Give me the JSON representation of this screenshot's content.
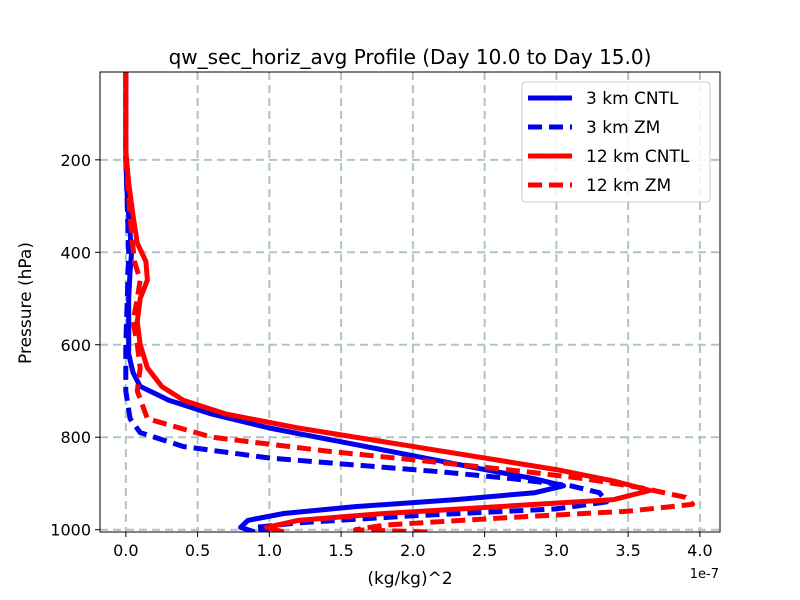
{
  "chart_data": {
    "type": "line",
    "title": "qw_sec_horiz_avg Profile (Day 10.0 to Day 15.0)",
    "xlabel": "(kg/kg)^2",
    "ylabel": "Pressure (hPa)",
    "x_offset_label": "1e-7",
    "x_scale": 1e-07,
    "xlim": [
      -0.18,
      4.14
    ],
    "ylim": [
      1005,
      10
    ],
    "y_inverted": true,
    "xticks": [
      0.0,
      0.5,
      1.0,
      1.5,
      2.0,
      2.5,
      3.0,
      3.5,
      4.0
    ],
    "xtick_labels": [
      "0.0",
      "0.5",
      "1.0",
      "1.5",
      "2.0",
      "2.5",
      "3.0",
      "3.5",
      "4.0"
    ],
    "yticks": [
      200,
      400,
      600,
      800,
      1000
    ],
    "ytick_labels": [
      "200",
      "400",
      "600",
      "800",
      "1000"
    ],
    "grid": true,
    "legend_position": "top-right",
    "series": [
      {
        "name": "3 km CNTL",
        "color": "#0000ee",
        "dash": "solid",
        "points": [
          [
            0.0,
            10
          ],
          [
            0.0,
            100
          ],
          [
            0.0,
            200
          ],
          [
            0.01,
            280
          ],
          [
            0.03,
            360
          ],
          [
            0.04,
            400
          ],
          [
            0.03,
            440
          ],
          [
            0.02,
            500
          ],
          [
            0.02,
            560
          ],
          [
            0.02,
            620
          ],
          [
            0.05,
            660
          ],
          [
            0.1,
            690
          ],
          [
            0.3,
            720
          ],
          [
            0.6,
            750
          ],
          [
            1.0,
            780
          ],
          [
            1.5,
            810
          ],
          [
            2.0,
            840
          ],
          [
            2.5,
            870
          ],
          [
            2.85,
            890
          ],
          [
            3.05,
            905
          ],
          [
            2.85,
            920
          ],
          [
            2.3,
            935
          ],
          [
            1.6,
            950
          ],
          [
            1.1,
            965
          ],
          [
            0.85,
            980
          ],
          [
            0.8,
            995
          ],
          [
            0.9,
            1005
          ]
        ]
      },
      {
        "name": "3 km ZM",
        "color": "#0000ee",
        "dash": "dashed",
        "points": [
          [
            0.0,
            10
          ],
          [
            0.0,
            100
          ],
          [
            0.0,
            200
          ],
          [
            0.01,
            300
          ],
          [
            0.02,
            400
          ],
          [
            0.01,
            500
          ],
          [
            0.0,
            600
          ],
          [
            0.0,
            700
          ],
          [
            0.03,
            760
          ],
          [
            0.1,
            790
          ],
          [
            0.4,
            820
          ],
          [
            1.0,
            845
          ],
          [
            1.6,
            860
          ],
          [
            2.2,
            875
          ],
          [
            2.7,
            890
          ],
          [
            3.1,
            905
          ],
          [
            3.3,
            920
          ],
          [
            3.35,
            940
          ],
          [
            3.0,
            955
          ],
          [
            2.0,
            970
          ],
          [
            1.2,
            985
          ],
          [
            0.9,
            995
          ],
          [
            1.0,
            1005
          ]
        ]
      },
      {
        "name": "12 km CNTL",
        "color": "#ff0000",
        "dash": "solid",
        "points": [
          [
            0.0,
            10
          ],
          [
            0.0,
            100
          ],
          [
            0.0,
            180
          ],
          [
            0.02,
            250
          ],
          [
            0.05,
            320
          ],
          [
            0.08,
            380
          ],
          [
            0.14,
            420
          ],
          [
            0.15,
            460
          ],
          [
            0.1,
            500
          ],
          [
            0.08,
            550
          ],
          [
            0.1,
            600
          ],
          [
            0.15,
            650
          ],
          [
            0.25,
            690
          ],
          [
            0.4,
            720
          ],
          [
            0.7,
            750
          ],
          [
            1.2,
            780
          ],
          [
            1.8,
            810
          ],
          [
            2.4,
            840
          ],
          [
            3.0,
            870
          ],
          [
            3.4,
            895
          ],
          [
            3.65,
            915
          ],
          [
            3.4,
            935
          ],
          [
            2.6,
            950
          ],
          [
            1.8,
            965
          ],
          [
            1.2,
            980
          ],
          [
            0.98,
            995
          ],
          [
            1.1,
            1005
          ]
        ]
      },
      {
        "name": "12 km ZM",
        "color": "#ff0000",
        "dash": "dashed",
        "points": [
          [
            0.0,
            10
          ],
          [
            0.0,
            100
          ],
          [
            0.0,
            200
          ],
          [
            0.02,
            280
          ],
          [
            0.04,
            360
          ],
          [
            0.06,
            420
          ],
          [
            0.1,
            460
          ],
          [
            0.08,
            500
          ],
          [
            0.05,
            550
          ],
          [
            0.08,
            600
          ],
          [
            0.1,
            650
          ],
          [
            0.08,
            700
          ],
          [
            0.15,
            760
          ],
          [
            0.6,
            800
          ],
          [
            1.4,
            830
          ],
          [
            2.2,
            855
          ],
          [
            2.8,
            875
          ],
          [
            3.2,
            890
          ],
          [
            3.6,
            910
          ],
          [
            3.9,
            930
          ],
          [
            3.95,
            945
          ],
          [
            3.5,
            960
          ],
          [
            2.6,
            975
          ],
          [
            1.8,
            990
          ],
          [
            1.6,
            1000
          ],
          [
            2.1,
            1005
          ]
        ]
      }
    ]
  }
}
